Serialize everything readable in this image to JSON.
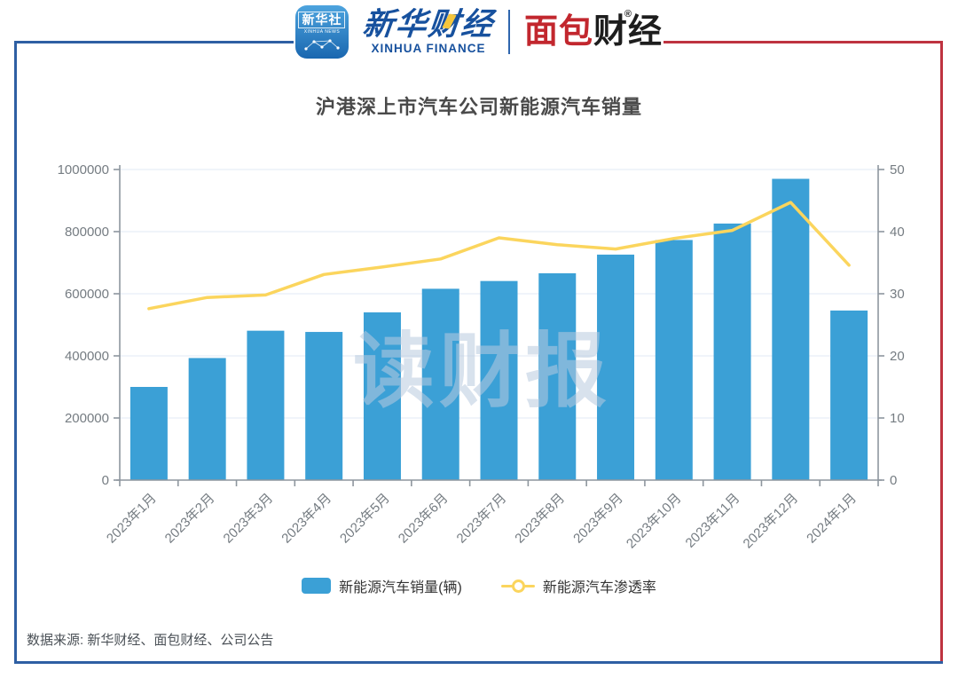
{
  "header": {
    "app_icon": {
      "title": "新华社",
      "subtitle": "XINHUA NEWS"
    },
    "finance_logo": {
      "cn": "新华财经",
      "en": "XINHUA FINANCE"
    },
    "bread_logo": {
      "cn_red": "面包",
      "cn_dark": "财经",
      "reg": "®"
    }
  },
  "title": "沪港深上市汽车公司新能源汽车销量",
  "watermark": "读财报",
  "footer": "数据来源: 新华财经、面包财经、公司公告",
  "colors": {
    "bar": "#3BA0D6",
    "line": "#FBD55D",
    "grid": "#E7EDF6",
    "axis": "#8E969E",
    "tick_label": "#757C82",
    "frame_blue": "#2E5FA3",
    "frame_red": "#BE3340"
  },
  "chart_data": {
    "type": "bar+line",
    "title": "沪港深上市汽车公司新能源汽车销量",
    "categories": [
      "2023年1月",
      "2023年2月",
      "2023年3月",
      "2023年4月",
      "2023年5月",
      "2023年6月",
      "2023年7月",
      "2023年8月",
      "2023年9月",
      "2023年10月",
      "2023年11月",
      "2023年12月",
      "2024年1月"
    ],
    "series": [
      {
        "name": "新能源汽车销量(辆)",
        "type": "bar",
        "y_axis": "left",
        "values": [
          300000,
          393000,
          481000,
          477000,
          540000,
          616000,
          641000,
          666000,
          726000,
          773000,
          826000,
          970000,
          546000
        ]
      },
      {
        "name": "新能源汽车渗透率",
        "type": "line",
        "y_axis": "right",
        "values": [
          27.6,
          29.4,
          29.8,
          33.1,
          34.3,
          35.6,
          39.0,
          37.9,
          37.2,
          38.9,
          40.2,
          44.7,
          34.6
        ]
      }
    ],
    "left_axis": {
      "min": 0,
      "max": 1000000,
      "tick_step": 200000,
      "tick_labels": [
        "0",
        "200000",
        "400000",
        "600000",
        "800000",
        "1000000"
      ]
    },
    "right_axis": {
      "min": 0,
      "max": 50,
      "tick_step": 10,
      "tick_labels": [
        "0",
        "10",
        "20",
        "30",
        "40",
        "50"
      ]
    },
    "grid": true,
    "legend_position": "bottom",
    "xlabel": "",
    "ylabel_left": "",
    "ylabel_right": ""
  }
}
